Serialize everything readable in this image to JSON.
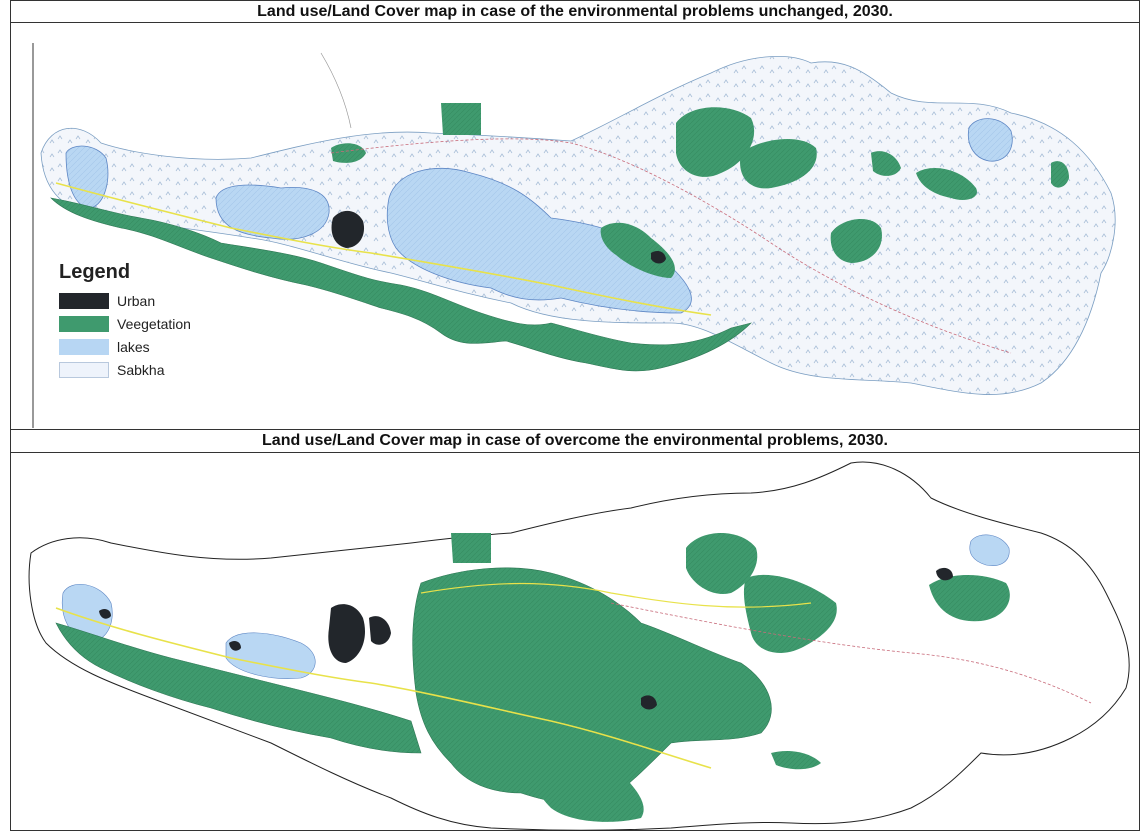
{
  "maps": {
    "top": {
      "title": "Land use/Land Cover map in case of the environmental problems unchanged, 2030."
    },
    "bottom": {
      "title": "Land use/Land Cover map in case of overcome the environmental problems, 2030."
    }
  },
  "legend": {
    "title": "Legend",
    "items": [
      {
        "label": "Urban",
        "color": "#22262b"
      },
      {
        "label": "Veegetation",
        "color": "#3f9a6e"
      },
      {
        "label": "lakes",
        "color": "#b7d6f3"
      },
      {
        "label": "Sabkha",
        "color": "#eef3fb"
      }
    ]
  },
  "colors": {
    "urban": "#22262b",
    "vegetation": "#3f9a6e",
    "lakes": "#b7d6f3",
    "sabkha": "#eef3fb",
    "roads": "#e8e24a",
    "boundary": "#222222"
  }
}
